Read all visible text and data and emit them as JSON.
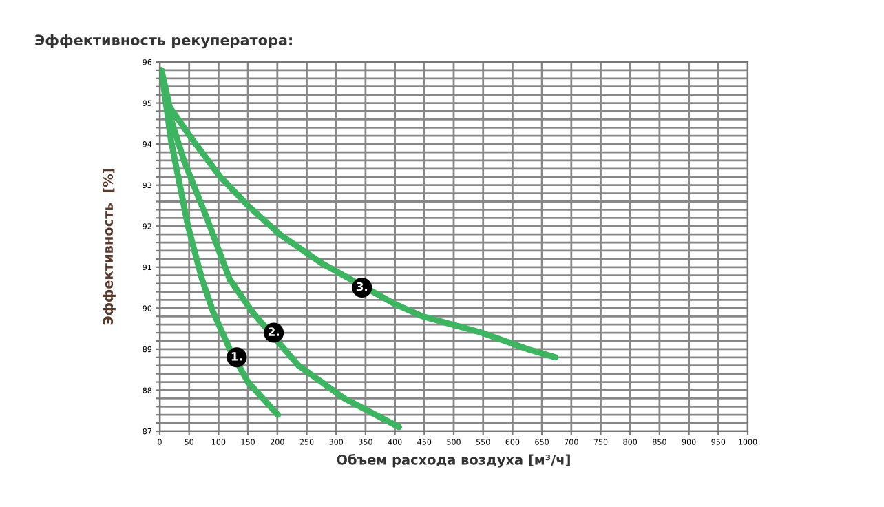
{
  "chart_data": {
    "type": "line",
    "title": "Эффективность рекуператора:",
    "xlabel": "Объем расхода воздуха [м³/ч]",
    "ylabel": "Эффективность  [%]",
    "xlim": [
      0,
      1000
    ],
    "ylim": [
      87,
      96
    ],
    "xticks": [
      0,
      50,
      100,
      150,
      200,
      250,
      300,
      350,
      400,
      450,
      500,
      550,
      600,
      650,
      700,
      750,
      800,
      850,
      900,
      950,
      1000
    ],
    "yticks": [
      87,
      {
        "value": 87.2,
        "label": null
      },
      {
        "value": 87.4,
        "label": null
      },
      {
        "value": 87.6,
        "label": null
      },
      {
        "value": 87.8,
        "label": null
      },
      88,
      {
        "value": 88.2,
        "label": null
      },
      {
        "value": 88.4,
        "label": null
      },
      {
        "value": 88.6,
        "label": null
      },
      {
        "value": 88.8,
        "label": null
      },
      89,
      {
        "value": 89.2,
        "label": null
      },
      {
        "value": 89.4,
        "label": null
      },
      {
        "value": 89.6,
        "label": null
      },
      {
        "value": 89.8,
        "label": null
      },
      90,
      {
        "value": 90.2,
        "label": null
      },
      {
        "value": 90.4,
        "label": null
      },
      {
        "value": 90.6,
        "label": null
      },
      {
        "value": 90.8,
        "label": null
      },
      91,
      {
        "value": 91.2,
        "label": null
      },
      {
        "value": 91.4,
        "label": null
      },
      {
        "value": 91.6,
        "label": null
      },
      {
        "value": 91.8,
        "label": null
      },
      92,
      {
        "value": 92.2,
        "label": null
      },
      {
        "value": 92.4,
        "label": null
      },
      {
        "value": 92.6,
        "label": null
      },
      {
        "value": 92.8,
        "label": null
      },
      93,
      {
        "value": 93.2,
        "label": null
      },
      {
        "value": 93.4,
        "label": null
      },
      {
        "value": 93.6,
        "label": null
      },
      {
        "value": 93.8,
        "label": null
      },
      94,
      {
        "value": 94.2,
        "label": null
      },
      {
        "value": 94.4,
        "label": null
      },
      {
        "value": 94.6,
        "label": null
      },
      {
        "value": 94.8,
        "label": null
      },
      95,
      {
        "value": 95.2,
        "label": null
      },
      {
        "value": 95.4,
        "label": null
      },
      {
        "value": 95.6,
        "label": null
      },
      {
        "value": 95.8,
        "label": null
      },
      96
    ],
    "grid": true,
    "marker": "none",
    "line_style": "solid",
    "series": [
      {
        "color": "#3cb460",
        "x": [
          3,
          19,
          48,
          72,
          91,
          119,
          150,
          201
        ],
        "values": [
          95.8,
          94.1,
          92.0,
          90.7,
          89.9,
          89.0,
          88.2,
          87.4
        ]
      },
      {
        "color": "#3cb460",
        "x": [
          3,
          13,
          41,
          80,
          119,
          158,
          236,
          314,
          407
        ],
        "values": [
          95.8,
          94.9,
          93.6,
          92.2,
          90.7,
          89.9,
          88.6,
          87.8,
          87.1
        ]
      },
      {
        "color": "#3cb460",
        "x": [
          3,
          17,
          56,
          103,
          150,
          204,
          275,
          400,
          447,
          548,
          626,
          673
        ],
        "values": [
          95.8,
          94.9,
          94.1,
          93.2,
          92.5,
          91.8,
          91.1,
          90.1,
          89.8,
          89.4,
          89.0,
          88.8
        ]
      }
    ],
    "annotations": [
      {
        "text": "1.",
        "x": 131,
        "y": 88.8
      },
      {
        "text": "2.",
        "x": 194,
        "y": 89.4
      },
      {
        "text": "3.",
        "x": 344,
        "y": 90.5
      }
    ]
  }
}
